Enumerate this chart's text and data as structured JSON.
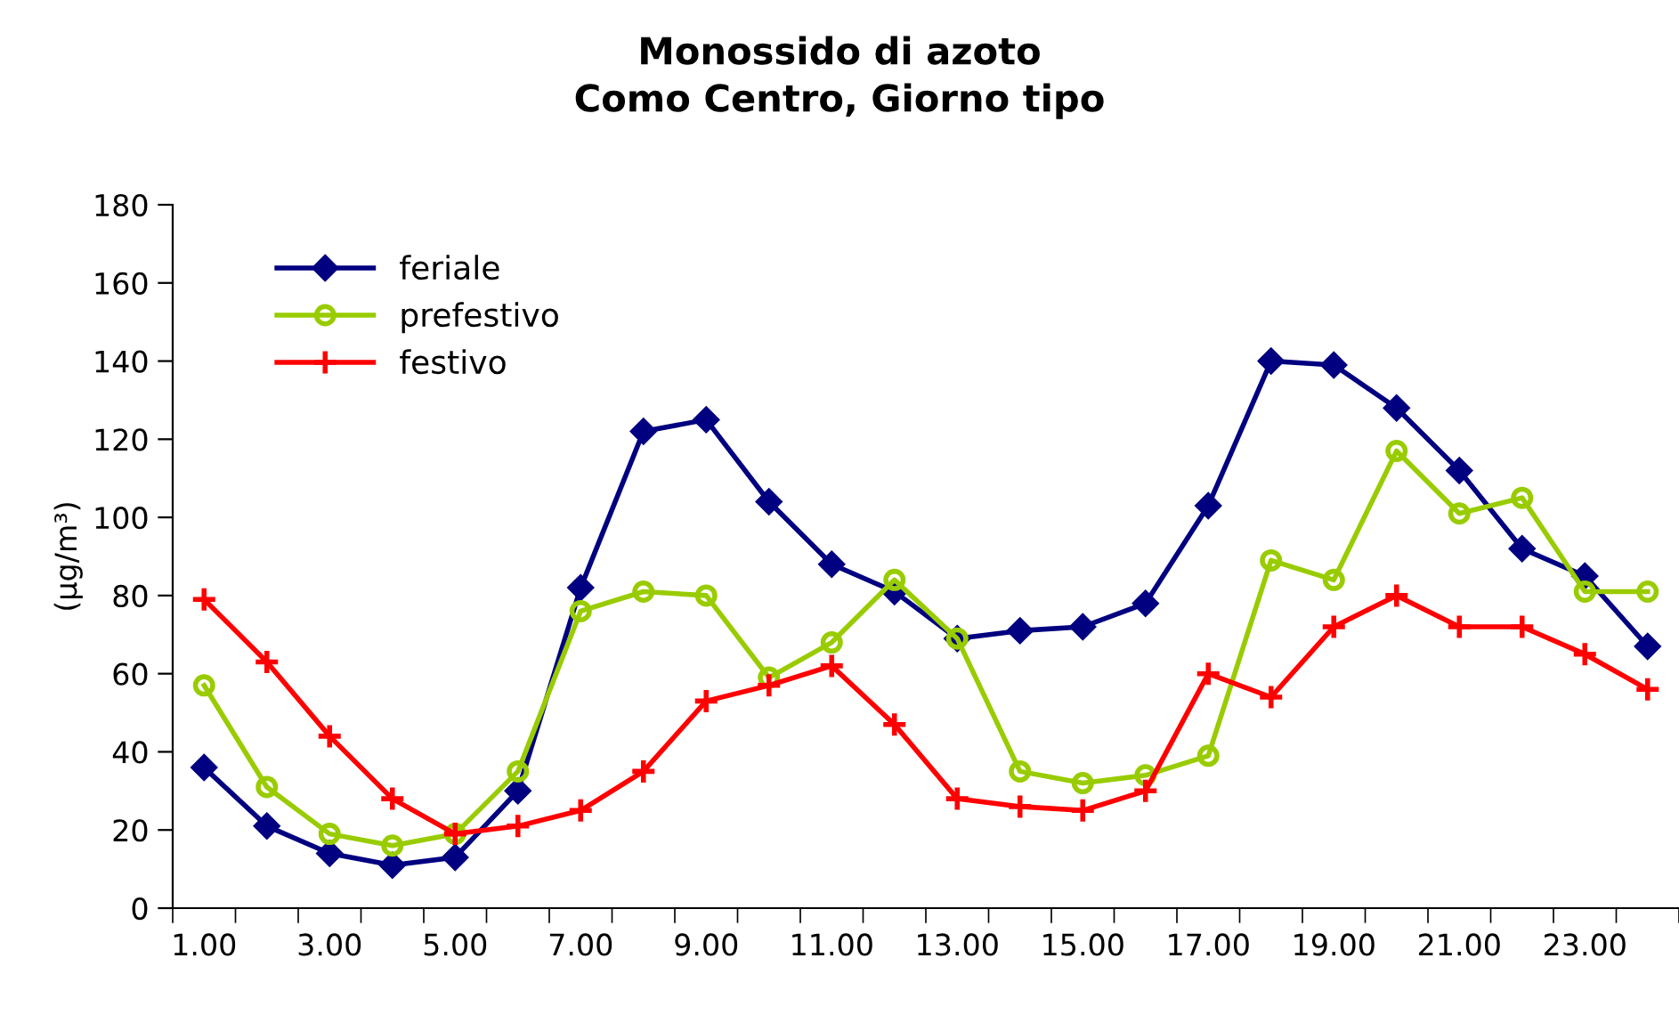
{
  "chart_data": {
    "type": "line",
    "title": "Monossido di azoto\nComo Centro, Giorno tipo",
    "ylabel": "(µg/m³)",
    "categories": [
      "1.00",
      null,
      "3.00",
      null,
      "5.00",
      null,
      "7.00",
      null,
      "9.00",
      null,
      "11.00",
      null,
      "13.00",
      null,
      "15.00",
      null,
      "17.00",
      null,
      "19.00",
      null,
      "21.00",
      null,
      "23.00",
      null
    ],
    "series": [
      {
        "name": "feriale",
        "color": "#000080",
        "marker": "diamond",
        "values": [
          36,
          21,
          14,
          11,
          13,
          30,
          82,
          122,
          125,
          104,
          88,
          81,
          69,
          71,
          72,
          78,
          103,
          140,
          139,
          128,
          112,
          92,
          85,
          67
        ]
      },
      {
        "name": "prefestivo",
        "color": "#99cc00",
        "marker": "circle",
        "values": [
          57,
          31,
          19,
          16,
          19,
          35,
          76,
          81,
          80,
          59,
          68,
          84,
          69,
          35,
          32,
          34,
          39,
          89,
          84,
          117,
          101,
          105,
          81,
          81
        ]
      },
      {
        "name": "festivo",
        "color": "#ff0000",
        "marker": "cross",
        "values": [
          79,
          63,
          44,
          28,
          19,
          21,
          25,
          35,
          53,
          57,
          62,
          47,
          28,
          26,
          25,
          30,
          60,
          54,
          72,
          80,
          72,
          72,
          65,
          56
        ]
      }
    ],
    "ylim": [
      0,
      180
    ],
    "yticks": [
      0,
      20,
      40,
      60,
      80,
      100,
      120,
      140,
      160,
      180
    ],
    "grid": false,
    "legend": "top left"
  }
}
